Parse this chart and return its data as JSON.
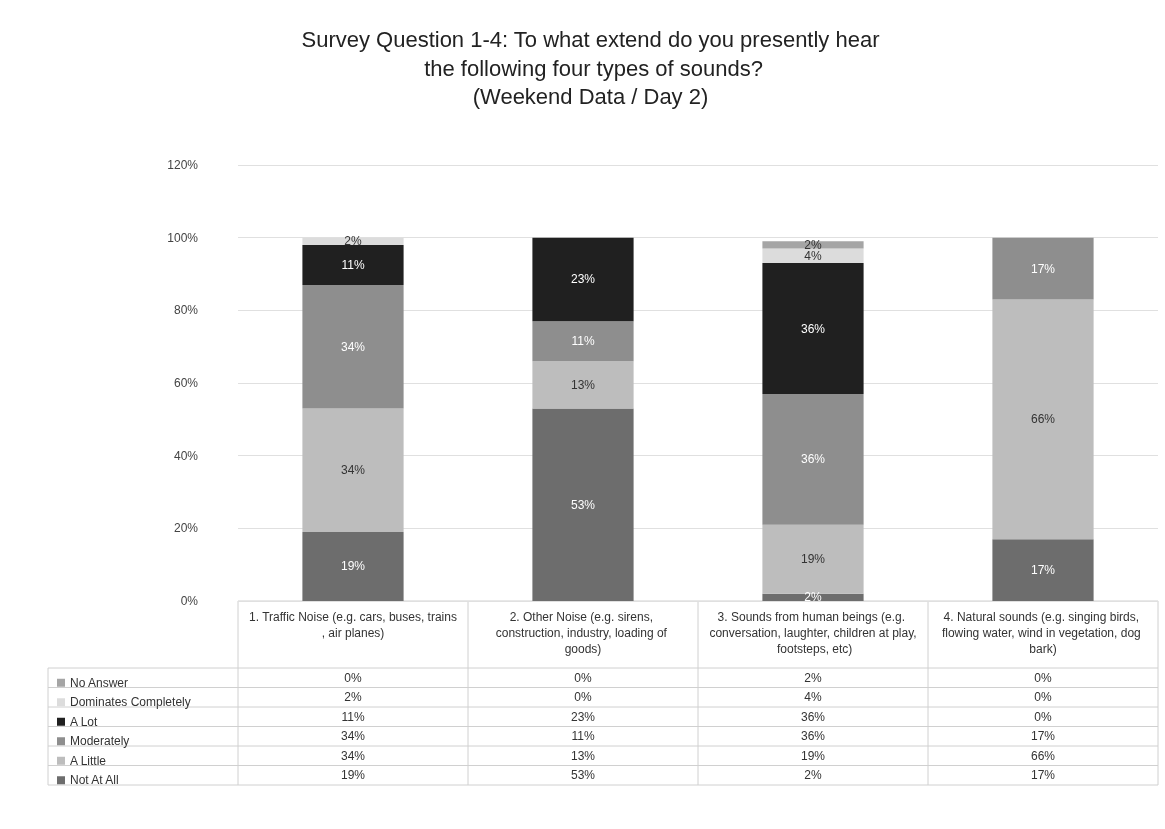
{
  "chart_data": {
    "type": "bar",
    "stacked": true,
    "title": "Survey Question 1-4: To what extend do you presently hear the following four types of sounds?",
    "subtitle": "(Weekend Data / Day 2)",
    "categories": [
      "1. Traffic Noise (e.g. cars, buses, trains, air planes)",
      "2. Other Noise (e.g. sirens, construction, industry, loading of goods)",
      "3. Sounds from human beings (e.g. conversation, laughter, children at play, footsteps, etc)",
      "4. Natural sounds (e.g. singing birds, flowing water, wind in vegetation, dog bark)"
    ],
    "series": [
      {
        "name": "Not At All",
        "color": "#6d6d6d",
        "values": [
          19,
          53,
          2,
          17
        ],
        "value_labels": [
          "19%",
          "53%",
          "2%",
          "17%"
        ]
      },
      {
        "name": "A Little",
        "color": "#bdbdbd",
        "values": [
          34,
          13,
          19,
          66
        ],
        "value_labels": [
          "34%",
          "13%",
          "19%",
          "66%"
        ]
      },
      {
        "name": "Moderately",
        "color": "#8e8e8e",
        "values": [
          34,
          11,
          36,
          17
        ],
        "value_labels": [
          "34%",
          "11%",
          "36%",
          "17%"
        ]
      },
      {
        "name": "A Lot",
        "color": "#202020",
        "values": [
          11,
          23,
          36,
          0
        ],
        "value_labels": [
          "11%",
          "23%",
          "36%",
          "0%"
        ]
      },
      {
        "name": "Dominates Completely",
        "color": "#dcdcdc",
        "values": [
          2,
          0,
          4,
          0
        ],
        "value_labels": [
          "2%",
          "0%",
          "4%",
          "0%"
        ]
      },
      {
        "name": "No Answer",
        "color": "#a5a5a5",
        "values": [
          0,
          0,
          2,
          0
        ],
        "value_labels": [
          "0%",
          "0%",
          "2%",
          "0%"
        ]
      }
    ],
    "ylim": [
      0,
      120
    ],
    "yticks": [
      {
        "value": 0,
        "label": "0%"
      },
      {
        "value": 20,
        "label": "20%"
      },
      {
        "value": 40,
        "label": "40%"
      },
      {
        "value": 60,
        "label": "60%"
      },
      {
        "value": 80,
        "label": "80%"
      },
      {
        "value": 100,
        "label": "100%"
      },
      {
        "value": 120,
        "label": "120%"
      }
    ],
    "grid": "y",
    "legend": "bottom left"
  }
}
